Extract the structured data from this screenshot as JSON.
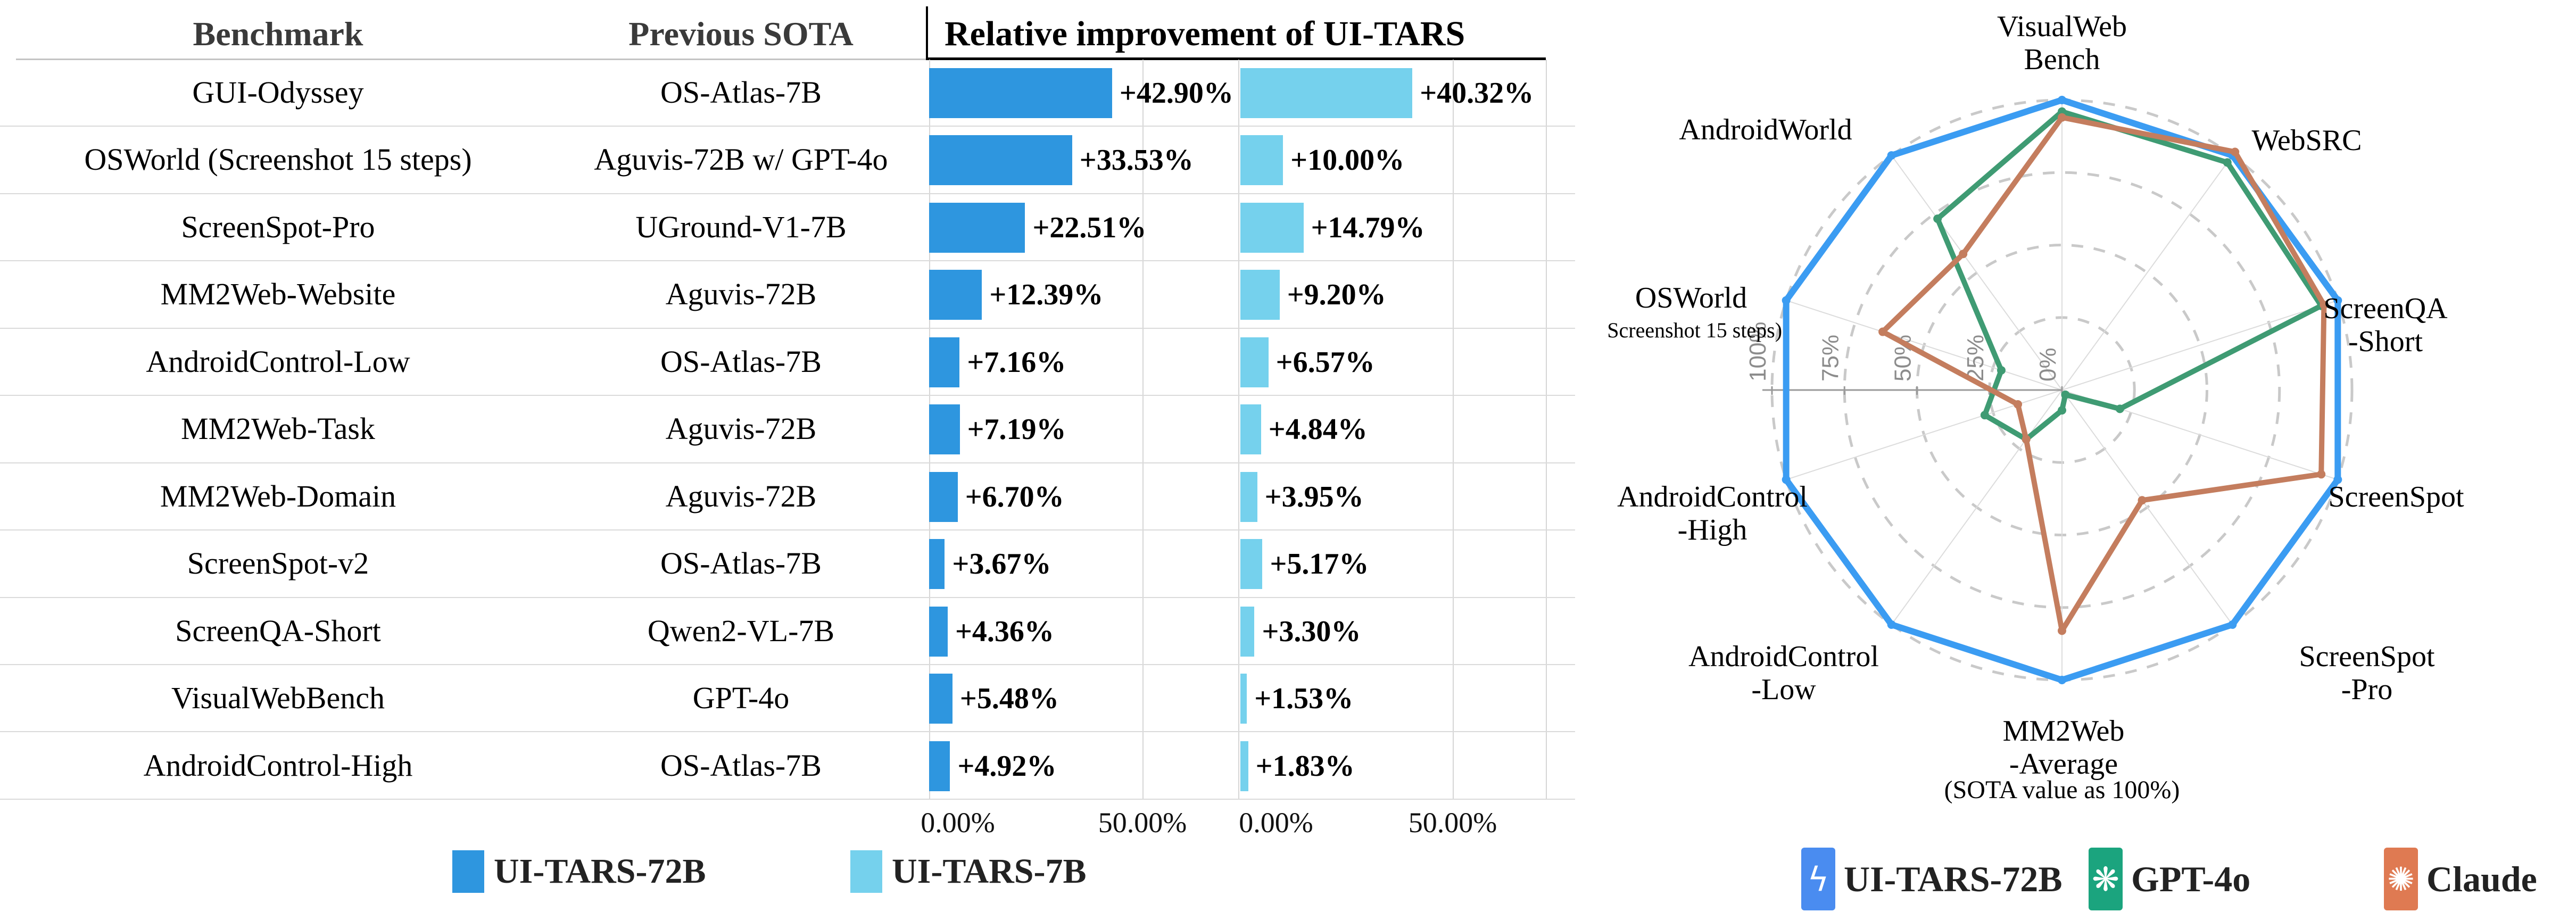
{
  "table": {
    "headers": {
      "benchmark": "Benchmark",
      "previous_sota": "Previous SOTA",
      "improvement": "Relative improvement of UI-TARS"
    },
    "axis_tick_labels": [
      "0.00%",
      "50.00%"
    ],
    "legend": [
      {
        "label": "UI-TARS-72B",
        "color": "#2e96df"
      },
      {
        "label": "UI-TARS-7B",
        "color": "#75d1ed"
      }
    ],
    "rows": [
      {
        "benchmark": "GUI-Odyssey",
        "previous_sota": "OS-Atlas-7B",
        "ui_tars_72b": {
          "value": 42.9,
          "label": "+42.90%"
        },
        "ui_tars_7b": {
          "value": 40.32,
          "label": "+40.32%"
        }
      },
      {
        "benchmark": "OSWorld (Screenshot 15 steps)",
        "previous_sota": "Aguvis-72B w/ GPT-4o",
        "ui_tars_72b": {
          "value": 33.53,
          "label": "+33.53%"
        },
        "ui_tars_7b": {
          "value": 10.0,
          "label": "+10.00%"
        }
      },
      {
        "benchmark": "ScreenSpot-Pro",
        "previous_sota": "UGround-V1-7B",
        "ui_tars_72b": {
          "value": 22.51,
          "label": "+22.51%"
        },
        "ui_tars_7b": {
          "value": 14.79,
          "label": "+14.79%"
        }
      },
      {
        "benchmark": "MM2Web-Website",
        "previous_sota": "Aguvis-72B",
        "ui_tars_72b": {
          "value": 12.39,
          "label": "+12.39%"
        },
        "ui_tars_7b": {
          "value": 9.2,
          "label": "+9.20%"
        }
      },
      {
        "benchmark": "AndroidControl-Low",
        "previous_sota": "OS-Atlas-7B",
        "ui_tars_72b": {
          "value": 7.16,
          "label": "+7.16%"
        },
        "ui_tars_7b": {
          "value": 6.57,
          "label": "+6.57%"
        }
      },
      {
        "benchmark": "MM2Web-Task",
        "previous_sota": "Aguvis-72B",
        "ui_tars_72b": {
          "value": 7.19,
          "label": "+7.19%"
        },
        "ui_tars_7b": {
          "value": 4.84,
          "label": "+4.84%"
        }
      },
      {
        "benchmark": "MM2Web-Domain",
        "previous_sota": "Aguvis-72B",
        "ui_tars_72b": {
          "value": 6.7,
          "label": "+6.70%"
        },
        "ui_tars_7b": {
          "value": 3.95,
          "label": "+3.95%"
        }
      },
      {
        "benchmark": "ScreenSpot-v2",
        "previous_sota": "OS-Atlas-7B",
        "ui_tars_72b": {
          "value": 3.67,
          "label": "+3.67%"
        },
        "ui_tars_7b": {
          "value": 5.17,
          "label": "+5.17%"
        }
      },
      {
        "benchmark": "ScreenQA-Short",
        "previous_sota": "Qwen2-VL-7B",
        "ui_tars_72b": {
          "value": 4.36,
          "label": "+4.36%"
        },
        "ui_tars_7b": {
          "value": 3.3,
          "label": "+3.30%"
        }
      },
      {
        "benchmark": "VisualWebBench",
        "previous_sota": "GPT-4o",
        "ui_tars_72b": {
          "value": 5.48,
          "label": "+5.48%"
        },
        "ui_tars_7b": {
          "value": 1.53,
          "label": "+1.53%"
        }
      },
      {
        "benchmark": "AndroidControl-High",
        "previous_sota": "OS-Atlas-7B",
        "ui_tars_72b": {
          "value": 4.92,
          "label": "+4.92%"
        },
        "ui_tars_7b": {
          "value": 1.83,
          "label": "+1.83%"
        }
      }
    ]
  },
  "radar": {
    "caption": "(SOTA value as 100%)",
    "tick_labels": [
      "100%",
      "75%",
      "50%",
      "25%",
      "0%"
    ],
    "legend": [
      {
        "label": "UI-TARS-72B",
        "swatch": "#4a8cf0",
        "icon": "ui-tars-logo",
        "glyph": "ϟ"
      },
      {
        "label": "GPT-4o",
        "swatch": "#1ba47e",
        "icon": "openai-logo",
        "glyph": "❋"
      },
      {
        "label": "Claude",
        "swatch": "#df7a52",
        "icon": "claude-logo",
        "glyph": "✺"
      }
    ]
  },
  "chart_data": [
    {
      "type": "bar",
      "orientation": "horizontal",
      "title": "Relative improvement of UI-TARS",
      "categories": [
        "GUI-Odyssey",
        "OSWorld (Screenshot 15 steps)",
        "ScreenSpot-Pro",
        "MM2Web-Website",
        "AndroidControl-Low",
        "MM2Web-Task",
        "MM2Web-Domain",
        "ScreenSpot-v2",
        "ScreenQA-Short",
        "VisualWebBench",
        "AndroidControl-High"
      ],
      "previous_sota": [
        "OS-Atlas-7B",
        "Aguvis-72B w/ GPT-4o",
        "UGround-V1-7B",
        "Aguvis-72B",
        "OS-Atlas-7B",
        "Aguvis-72B",
        "Aguvis-72B",
        "OS-Atlas-7B",
        "Qwen2-VL-7B",
        "GPT-4o",
        "OS-Atlas-7B"
      ],
      "series": [
        {
          "name": "UI-TARS-72B",
          "color": "#2e96df",
          "values": [
            42.9,
            33.53,
            22.51,
            12.39,
            7.16,
            7.19,
            6.7,
            3.67,
            4.36,
            5.48,
            4.92
          ]
        },
        {
          "name": "UI-TARS-7B",
          "color": "#75d1ed",
          "values": [
            40.32,
            10.0,
            14.79,
            9.2,
            6.57,
            4.84,
            3.95,
            5.17,
            3.3,
            1.53,
            1.83
          ]
        }
      ],
      "xlim": [
        0,
        71.6
      ],
      "x_ticks": [
        "0.00%",
        "50.00%"
      ],
      "grid": true
    },
    {
      "type": "radar",
      "title": "(SOTA value as 100%)",
      "axes": [
        "VisualWebBench",
        "WebSRC",
        "ScreenQA-Short",
        "ScreenSpot",
        "ScreenSpot-Pro",
        "MM2Web-Average",
        "AndroidControl-Low",
        "AndroidControl-High",
        "OSWorld (Screenshot 15 steps)",
        "AndroidWorld"
      ],
      "axis_display": [
        [
          "VisualWeb",
          "Bench"
        ],
        [
          "WebSRC"
        ],
        [
          "ScreenQA",
          "-Short"
        ],
        [
          "ScreenSpot"
        ],
        [
          "ScreenSpot",
          "-Pro"
        ],
        [
          "MM2Web",
          "-Average"
        ],
        [
          "AndroidControl",
          "-Low"
        ],
        [
          "AndroidControl",
          "-High"
        ],
        [
          "OSWorld",
          "(Screenshot 15 steps)"
        ],
        [
          "AndroidWorld"
        ]
      ],
      "rlim": [
        0,
        100
      ],
      "ring_values": [
        25,
        50,
        75,
        100
      ],
      "tick_labels": [
        "100%",
        "75%",
        "50%",
        "25%",
        "0%"
      ],
      "grid": true,
      "legend_position": "bottom",
      "series": [
        {
          "name": "UI-TARS-72B",
          "color": "#3b9cf2",
          "values": [
            100,
            100,
            100,
            100,
            100,
            100,
            100,
            100,
            100,
            100
          ]
        },
        {
          "name": "GPT-4o",
          "color": "#3f9b73",
          "values": [
            96,
            97,
            94,
            21,
            2,
            7,
            21,
            28,
            22,
            73
          ]
        },
        {
          "name": "Claude",
          "color": "#c47d5e",
          "values": [
            94,
            101.5,
            95,
            94,
            47,
            83,
            21,
            16,
            65,
            58
          ]
        }
      ]
    }
  ]
}
